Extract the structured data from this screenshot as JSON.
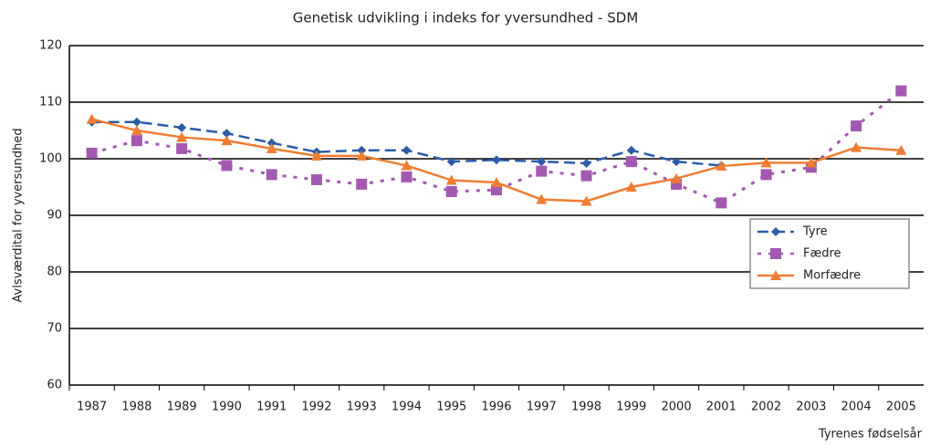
{
  "chart_data": {
    "type": "line",
    "title": "Genetisk udvikling i indeks for yversundhed - SDM",
    "x_label": "Tyrenes fødselsår",
    "y_label": "Avlsværdital for yversundhed",
    "categories": [
      "1987",
      "1988",
      "1989",
      "1990",
      "1991",
      "1992",
      "1993",
      "1994",
      "1995",
      "1996",
      "1997",
      "1998",
      "1999",
      "2000",
      "2001",
      "2002",
      "2003",
      "2004",
      "2005"
    ],
    "series": [
      {
        "name": "Tyre",
        "color": "#2a5ca8",
        "dash": "dashed",
        "marker": "diamond",
        "values": [
          106.5,
          106.5,
          105.5,
          104.5,
          102.8,
          101.2,
          101.5,
          101.5,
          99.5,
          99.8,
          99.5,
          99.2,
          101.5,
          99.5,
          98.8,
          null,
          null,
          null,
          null
        ]
      },
      {
        "name": "Fædre",
        "color": "#a259b0",
        "dash": "dotted",
        "marker": "square",
        "values": [
          101,
          103.2,
          101.8,
          98.8,
          97.2,
          96.3,
          95.5,
          96.8,
          94.2,
          94.5,
          97.8,
          97,
          99.5,
          95.5,
          92.2,
          97.2,
          98.5,
          105.8,
          112
        ]
      },
      {
        "name": "Morfædre",
        "color": "#ef7d32",
        "dash": "solid",
        "marker": "triangle",
        "values": [
          107,
          105,
          103.8,
          103.2,
          101.8,
          100.5,
          100.5,
          98.8,
          96.2,
          95.8,
          92.8,
          92.5,
          95,
          96.5,
          98.7,
          99.3,
          99.3,
          102,
          101.5
        ]
      }
    ],
    "ylim": [
      60,
      120
    ],
    "yticks": [
      60,
      70,
      80,
      90,
      100,
      110,
      120
    ],
    "grid": true,
    "legend": "right"
  }
}
